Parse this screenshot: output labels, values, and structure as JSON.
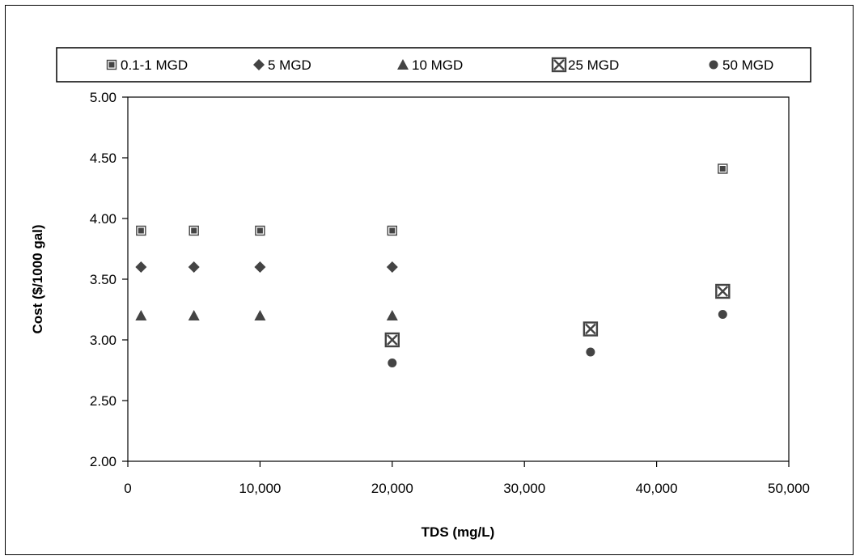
{
  "chart_data": {
    "type": "scatter",
    "title": "",
    "xlabel": "TDS (mg/L)",
    "ylabel": "Cost ($/1000 gal)",
    "xlim": [
      0,
      50000
    ],
    "ylim": [
      2.0,
      5.0
    ],
    "x_ticks": [
      {
        "value": 0,
        "label": "0"
      },
      {
        "value": 10000,
        "label": "10,000"
      },
      {
        "value": 20000,
        "label": "20,000"
      },
      {
        "value": 30000,
        "label": "30,000"
      },
      {
        "value": 40000,
        "label": "40,000"
      },
      {
        "value": 50000,
        "label": "50,000"
      }
    ],
    "y_ticks": [
      {
        "value": 2.0,
        "label": "2.00"
      },
      {
        "value": 2.5,
        "label": "2.50"
      },
      {
        "value": 3.0,
        "label": "3.00"
      },
      {
        "value": 3.5,
        "label": "3.50"
      },
      {
        "value": 4.0,
        "label": "4.00"
      },
      {
        "value": 4.5,
        "label": "4.50"
      },
      {
        "value": 5.0,
        "label": "5.00"
      }
    ],
    "grid": false,
    "legend_position": "top",
    "series": [
      {
        "name": "0.1-1 MGD",
        "marker": "square",
        "color": "#444444",
        "points": [
          {
            "x": 1000,
            "y": 3.9
          },
          {
            "x": 5000,
            "y": 3.9
          },
          {
            "x": 10000,
            "y": 3.9
          },
          {
            "x": 20000,
            "y": 3.9
          },
          {
            "x": 45000,
            "y": 4.41
          }
        ]
      },
      {
        "name": "5 MGD",
        "marker": "diamond",
        "color": "#444444",
        "points": [
          {
            "x": 1000,
            "y": 3.6
          },
          {
            "x": 5000,
            "y": 3.6
          },
          {
            "x": 10000,
            "y": 3.6
          },
          {
            "x": 20000,
            "y": 3.6
          }
        ]
      },
      {
        "name": "10 MGD",
        "marker": "triangle",
        "color": "#444444",
        "points": [
          {
            "x": 1000,
            "y": 3.2
          },
          {
            "x": 5000,
            "y": 3.2
          },
          {
            "x": 10000,
            "y": 3.2
          },
          {
            "x": 20000,
            "y": 3.2
          }
        ]
      },
      {
        "name": "25 MGD",
        "marker": "boxed-x",
        "color": "#444444",
        "points": [
          {
            "x": 20000,
            "y": 3.0
          },
          {
            "x": 35000,
            "y": 3.09
          },
          {
            "x": 45000,
            "y": 3.4
          }
        ]
      },
      {
        "name": "50 MGD",
        "marker": "circle",
        "color": "#444444",
        "points": [
          {
            "x": 20000,
            "y": 2.81
          },
          {
            "x": 35000,
            "y": 2.9
          },
          {
            "x": 45000,
            "y": 3.21
          }
        ]
      }
    ]
  }
}
